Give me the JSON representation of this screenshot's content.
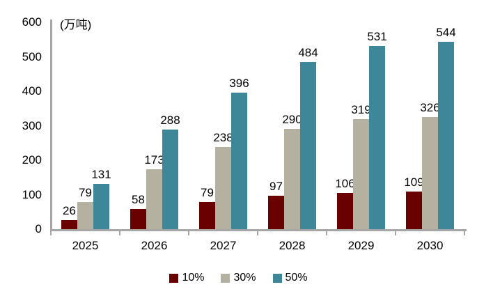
{
  "chart_data": {
    "type": "bar",
    "title": "(万吨)",
    "categories": [
      "2025",
      "2026",
      "2027",
      "2028",
      "2029",
      "2030"
    ],
    "series": [
      {
        "name": "10%",
        "color": "#680100",
        "values": [
          26,
          58,
          79,
          97,
          106,
          109
        ]
      },
      {
        "name": "30%",
        "color": "#b4b1a1",
        "values": [
          79,
          173,
          238,
          290,
          319,
          326
        ]
      },
      {
        "name": "50%",
        "color": "#3e8799",
        "values": [
          131,
          288,
          396,
          484,
          531,
          544
        ]
      }
    ],
    "ylim": [
      0,
      600
    ],
    "yticks": [
      0,
      100,
      200,
      300,
      400,
      500,
      600
    ],
    "grid": false,
    "legend_position": "bottom",
    "axis_color": "#a6a6a6",
    "text_color": "#000000"
  }
}
